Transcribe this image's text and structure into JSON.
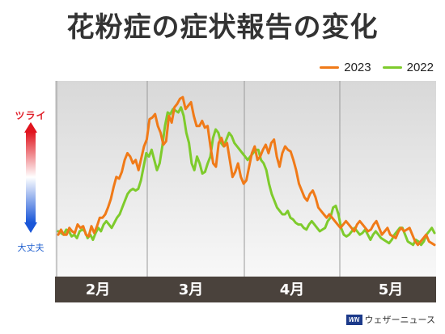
{
  "header": {
    "title": "花粉症の症状報告の変化"
  },
  "scale": {
    "top_label": "ツライ",
    "bottom_label": "大丈夫"
  },
  "footer": {
    "brand": "ウェザーニュース",
    "logo_text": "WN"
  },
  "colors": {
    "s2023": "#f07a18",
    "s2022": "#7ecb2c",
    "axis_band": "#4a423c"
  },
  "chart_data": {
    "type": "line",
    "x_labels": [
      "2月",
      "3月",
      "4月",
      "5月"
    ],
    "ylim": [
      0,
      100
    ],
    "legend": "top-right",
    "grid": "vertical",
    "series": [
      {
        "name": "2023",
        "values": [
          18,
          21,
          18,
          18,
          22,
          20,
          19,
          24,
          22,
          23,
          18,
          17,
          23,
          19,
          23,
          28,
          28,
          30,
          34,
          39,
          46,
          52,
          51,
          55,
          62,
          66,
          64,
          60,
          62,
          56,
          63,
          70,
          74,
          86,
          87,
          89,
          82,
          78,
          71,
          73,
          88,
          84,
          93,
          95,
          98,
          99,
          92,
          94,
          96,
          88,
          82,
          82,
          85,
          81,
          82,
          70,
          60,
          58,
          72,
          75,
          70,
          72,
          62,
          52,
          55,
          60,
          52,
          48,
          50,
          58,
          66,
          70,
          62,
          64,
          68,
          71,
          66,
          72,
          74,
          64,
          58,
          66,
          70,
          68,
          67,
          62,
          56,
          48,
          44,
          40,
          38,
          42,
          44,
          40,
          34,
          32,
          30,
          28,
          30,
          28,
          26,
          24,
          22,
          24,
          26,
          24,
          22,
          20,
          24,
          26,
          24,
          22,
          20,
          21,
          24,
          26,
          22,
          18,
          20,
          22,
          18,
          17,
          16,
          20,
          22,
          20,
          21,
          22,
          18,
          14,
          12,
          14,
          16,
          18,
          14,
          13,
          12
        ]
      },
      {
        "name": "2022",
        "values": [
          20,
          19,
          18,
          21,
          20,
          17,
          18,
          16,
          20,
          21,
          20,
          16,
          18,
          15,
          19,
          22,
          20,
          24,
          26,
          24,
          22,
          25,
          28,
          30,
          34,
          38,
          42,
          44,
          45,
          44,
          45,
          50,
          58,
          66,
          64,
          68,
          62,
          56,
          60,
          70,
          82,
          90,
          89,
          92,
          91,
          90,
          93,
          88,
          78,
          72,
          60,
          56,
          64,
          60,
          54,
          55,
          60,
          64,
          75,
          80,
          78,
          72,
          70,
          74,
          78,
          76,
          72,
          70,
          68,
          66,
          64,
          62,
          64,
          66,
          68,
          68,
          62,
          60,
          56,
          48,
          42,
          38,
          34,
          32,
          30,
          30,
          32,
          28,
          27,
          25,
          24,
          24,
          22,
          21,
          24,
          26,
          24,
          22,
          20,
          21,
          22,
          26,
          28,
          34,
          35,
          30,
          22,
          18,
          17,
          18,
          20,
          22,
          20,
          18,
          19,
          21,
          18,
          15,
          18,
          20,
          18,
          16,
          15,
          14,
          13,
          15,
          18,
          20,
          22,
          22,
          18,
          14,
          13,
          12,
          15,
          14,
          12,
          14,
          18,
          20,
          22,
          19
        ]
      }
    ]
  }
}
